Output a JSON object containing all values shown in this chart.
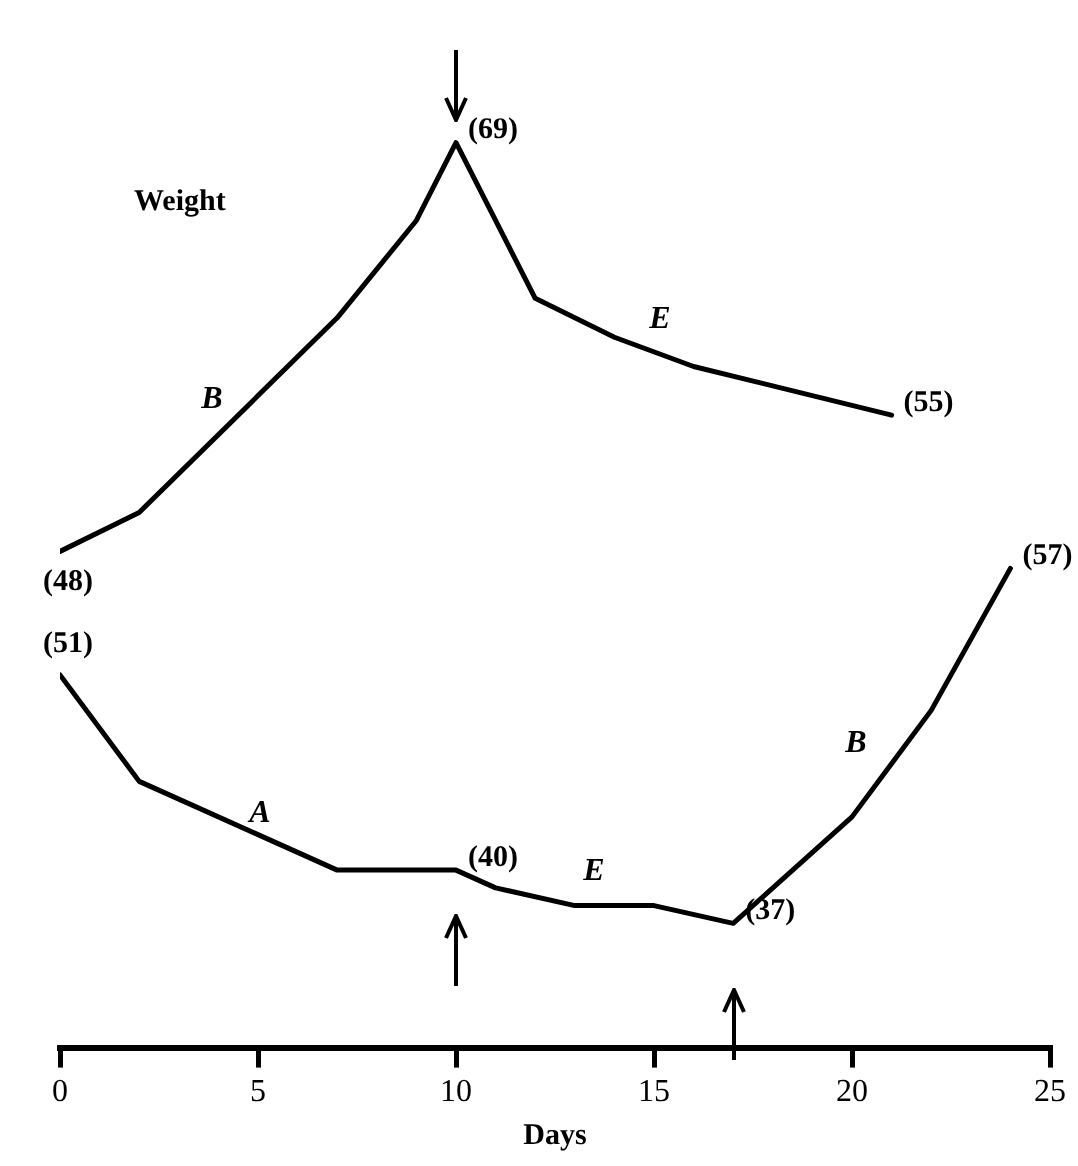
{
  "chart_data": [
    {
      "type": "line",
      "xlim": [
        0,
        25
      ],
      "tick_labels": false,
      "grid": false,
      "legend": false,
      "marker": "none",
      "line_style": "solid",
      "annotations": [
        "Weight",
        "B",
        "E"
      ],
      "series": [
        {
          "color": "#000000",
          "x": [
            0,
            2,
            7,
            9,
            10,
            12,
            14,
            16,
            21
          ],
          "values": [
            48,
            50,
            60,
            65,
            69,
            61,
            59,
            57.5,
            55
          ],
          "value_labels": [
            "(48)",
            null,
            null,
            null,
            "(69)",
            null,
            null,
            null,
            "(55)"
          ]
        }
      ]
    },
    {
      "type": "line",
      "xlabel": "Days",
      "xlim": [
        0,
        25
      ],
      "xticks": [
        0,
        5,
        10,
        15,
        20,
        25
      ],
      "tick_labels": "x",
      "grid": false,
      "legend": false,
      "marker": "none",
      "line_style": "solid",
      "annotations": [
        "A",
        "E",
        "B"
      ],
      "series": [
        {
          "color": "#000000",
          "x": [
            0,
            2,
            5,
            7,
            10,
            11,
            13,
            15,
            17,
            20,
            22,
            24
          ],
          "values": [
            51,
            45,
            42,
            40,
            40,
            39,
            38,
            38,
            37,
            43,
            49,
            57
          ],
          "value_labels": [
            "(51)",
            null,
            null,
            null,
            "(40)",
            null,
            null,
            null,
            "(37)",
            null,
            null,
            "(57)"
          ]
        }
      ]
    }
  ]
}
